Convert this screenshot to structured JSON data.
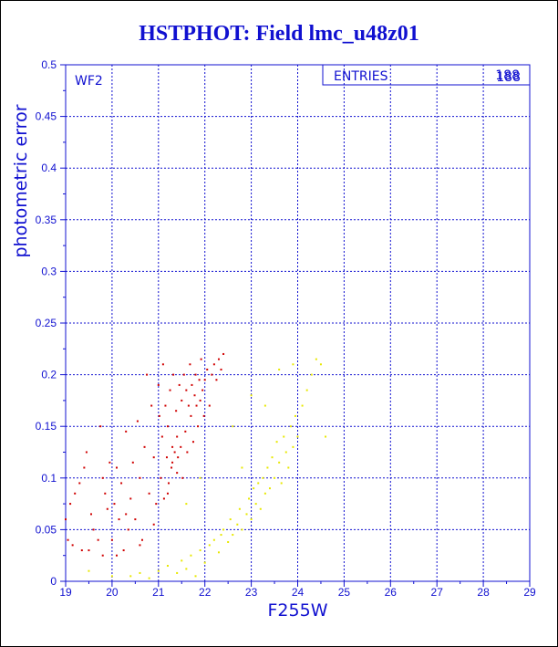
{
  "title": "HSTPHOT: Field lmc_u48z01",
  "chart_data": {
    "type": "scatter",
    "title": "HSTPHOT: Field lmc_u48z01",
    "xlabel": "F255W",
    "ylabel": "photometric error",
    "xlim": [
      19,
      29
    ],
    "ylim": [
      0,
      0.5
    ],
    "xticks": [
      19,
      20,
      21,
      22,
      23,
      24,
      25,
      26,
      27,
      28,
      29
    ],
    "yticks": [
      0,
      0.05,
      0.1,
      0.15,
      0.2,
      0.25,
      0.3,
      0.35,
      0.4,
      0.45,
      0.5
    ],
    "grid": true,
    "panel_label": "WF2",
    "stats_box": {
      "label": "ENTRIES",
      "values": [
        "188",
        "188"
      ]
    },
    "colors": {
      "axis": "#1010d0",
      "grid": "#1010d0",
      "series_a": "#d00000",
      "series_b": "#e8e800"
    },
    "series": [
      {
        "color": "#d00000",
        "points": [
          [
            19.0,
            0.06
          ],
          [
            19.05,
            0.04
          ],
          [
            19.1,
            0.075
          ],
          [
            19.15,
            0.035
          ],
          [
            19.2,
            0.085
          ],
          [
            19.3,
            0.095
          ],
          [
            19.35,
            0.03
          ],
          [
            19.4,
            0.11
          ],
          [
            19.45,
            0.125
          ],
          [
            19.5,
            0.03
          ],
          [
            19.55,
            0.065
          ],
          [
            19.6,
            0.05
          ],
          [
            19.7,
            0.04
          ],
          [
            19.75,
            0.15
          ],
          [
            19.8,
            0.1
          ],
          [
            19.85,
            0.085
          ],
          [
            19.9,
            0.07
          ],
          [
            19.95,
            0.115
          ],
          [
            20.0,
            0.04
          ],
          [
            20.05,
            0.075
          ],
          [
            20.1,
            0.11
          ],
          [
            20.15,
            0.06
          ],
          [
            20.2,
            0.095
          ],
          [
            20.25,
            0.03
          ],
          [
            20.3,
            0.145
          ],
          [
            20.35,
            0.05
          ],
          [
            20.4,
            0.08
          ],
          [
            20.45,
            0.115
          ],
          [
            20.5,
            0.06
          ],
          [
            20.55,
            0.155
          ],
          [
            20.6,
            0.1
          ],
          [
            20.65,
            0.04
          ],
          [
            20.7,
            0.13
          ],
          [
            20.75,
            0.2
          ],
          [
            20.8,
            0.085
          ],
          [
            20.85,
            0.17
          ],
          [
            20.9,
            0.12
          ],
          [
            20.95,
            0.075
          ],
          [
            21.0,
            0.19
          ],
          [
            21.02,
            0.16
          ],
          [
            21.05,
            0.1
          ],
          [
            21.08,
            0.14
          ],
          [
            21.1,
            0.21
          ],
          [
            21.12,
            0.08
          ],
          [
            21.15,
            0.17
          ],
          [
            21.18,
            0.12
          ],
          [
            21.2,
            0.15
          ],
          [
            21.22,
            0.095
          ],
          [
            21.25,
            0.185
          ],
          [
            21.28,
            0.11
          ],
          [
            21.3,
            0.13
          ],
          [
            21.32,
            0.2
          ],
          [
            21.35,
            0.125
          ],
          [
            21.38,
            0.165
          ],
          [
            21.4,
            0.14
          ],
          [
            21.42,
            0.12
          ],
          [
            21.45,
            0.19
          ],
          [
            21.48,
            0.13
          ],
          [
            21.5,
            0.175
          ],
          [
            21.52,
            0.1
          ],
          [
            21.55,
            0.2
          ],
          [
            21.58,
            0.145
          ],
          [
            21.6,
            0.185
          ],
          [
            21.62,
            0.125
          ],
          [
            21.65,
            0.17
          ],
          [
            21.68,
            0.21
          ],
          [
            21.7,
            0.16
          ],
          [
            21.72,
            0.19
          ],
          [
            21.75,
            0.135
          ],
          [
            21.78,
            0.18
          ],
          [
            21.8,
            0.2
          ],
          [
            21.82,
            0.17
          ],
          [
            21.85,
            0.15
          ],
          [
            21.88,
            0.195
          ],
          [
            21.9,
            0.175
          ],
          [
            21.92,
            0.215
          ],
          [
            21.95,
            0.185
          ],
          [
            21.98,
            0.16
          ],
          [
            22.0,
            0.195
          ],
          [
            22.05,
            0.205
          ],
          [
            22.1,
            0.17
          ],
          [
            22.15,
            0.2
          ],
          [
            22.2,
            0.21
          ],
          [
            22.25,
            0.195
          ],
          [
            22.3,
            0.215
          ],
          [
            22.35,
            0.205
          ],
          [
            22.4,
            0.22
          ],
          [
            21.3,
            0.115
          ],
          [
            21.4,
            0.105
          ],
          [
            21.2,
            0.085
          ],
          [
            20.9,
            0.055
          ],
          [
            20.6,
            0.035
          ],
          [
            20.3,
            0.065
          ],
          [
            19.8,
            0.025
          ],
          [
            20.1,
            0.025
          ]
        ]
      },
      {
        "color": "#e8e800",
        "points": [
          [
            19.5,
            0.01
          ],
          [
            20.0,
            0.005
          ],
          [
            20.4,
            0.005
          ],
          [
            20.6,
            0.008
          ],
          [
            20.8,
            0.003
          ],
          [
            21.0,
            0.01
          ],
          [
            21.2,
            0.015
          ],
          [
            21.4,
            0.008
          ],
          [
            21.5,
            0.02
          ],
          [
            21.6,
            0.012
          ],
          [
            21.7,
            0.025
          ],
          [
            21.8,
            0.005
          ],
          [
            21.9,
            0.03
          ],
          [
            22.0,
            0.018
          ],
          [
            22.1,
            0.035
          ],
          [
            22.2,
            0.04
          ],
          [
            22.3,
            0.028
          ],
          [
            22.35,
            0.045
          ],
          [
            22.4,
            0.05
          ],
          [
            22.5,
            0.038
          ],
          [
            22.55,
            0.06
          ],
          [
            22.6,
            0.045
          ],
          [
            22.7,
            0.055
          ],
          [
            22.75,
            0.07
          ],
          [
            22.8,
            0.05
          ],
          [
            22.9,
            0.065
          ],
          [
            22.95,
            0.08
          ],
          [
            23.0,
            0.06
          ],
          [
            23.05,
            0.09
          ],
          [
            23.1,
            0.075
          ],
          [
            23.15,
            0.095
          ],
          [
            23.2,
            0.07
          ],
          [
            23.25,
            0.1
          ],
          [
            23.3,
            0.085
          ],
          [
            23.35,
            0.11
          ],
          [
            23.4,
            0.09
          ],
          [
            23.45,
            0.12
          ],
          [
            23.5,
            0.1
          ],
          [
            23.55,
            0.135
          ],
          [
            23.6,
            0.115
          ],
          [
            23.65,
            0.095
          ],
          [
            23.7,
            0.14
          ],
          [
            23.75,
            0.125
          ],
          [
            23.8,
            0.11
          ],
          [
            23.85,
            0.15
          ],
          [
            23.9,
            0.13
          ],
          [
            23.95,
            0.16
          ],
          [
            24.0,
            0.14
          ],
          [
            24.1,
            0.17
          ],
          [
            24.2,
            0.185
          ],
          [
            24.3,
            0.2
          ],
          [
            24.4,
            0.215
          ],
          [
            24.5,
            0.21
          ],
          [
            24.6,
            0.14
          ],
          [
            23.0,
            0.18
          ],
          [
            23.3,
            0.17
          ],
          [
            23.6,
            0.205
          ],
          [
            23.9,
            0.21
          ],
          [
            22.8,
            0.11
          ],
          [
            22.6,
            0.15
          ],
          [
            21.9,
            0.1
          ],
          [
            21.6,
            0.075
          ]
        ]
      }
    ]
  }
}
